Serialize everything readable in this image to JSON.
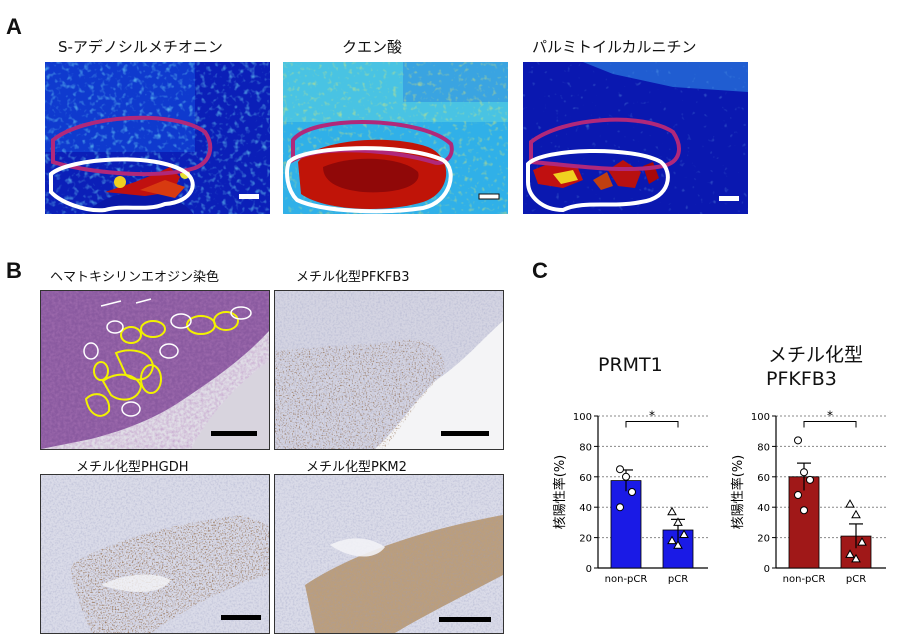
{
  "panels": {
    "a": {
      "letter": "A",
      "captions": [
        "S-アデノシルメチオニン",
        "クエン酸",
        "パルミトイルカルニチン"
      ]
    },
    "b": {
      "letter": "B",
      "captions": [
        "ヘマトキシリンエオジン染色",
        "メチル化型PFKFB3",
        "メチル化型PHGDH",
        "メチル化型PKM2"
      ]
    },
    "c": {
      "letter": "C",
      "titles": [
        [
          "PRMT1"
        ],
        [
          "メチル化型",
          "PFKFB3"
        ]
      ]
    }
  },
  "colors": {
    "prmt1_bar": "#1a1ae6",
    "pfkfb3_bar": "#a01818",
    "tumor_outline": "#ffffff",
    "stroma_outline": "#b0287a",
    "he_annotation": "#f2f200"
  },
  "chart_data": [
    {
      "type": "bar",
      "title": "PRMT1",
      "categories": [
        "non-pCR",
        "pCR"
      ],
      "values": [
        57.5,
        25
      ],
      "errors": [
        7,
        7
      ],
      "ylabel": "核陽性率(%)",
      "ylim": [
        0,
        100
      ],
      "yticks": [
        0,
        20,
        40,
        60,
        80,
        100
      ],
      "points": [
        [
          65,
          60,
          50,
          40
        ],
        [
          37,
          30,
          22,
          18,
          15
        ]
      ],
      "markers": [
        "circle",
        "triangle"
      ],
      "significance": "*",
      "grid": true
    },
    {
      "type": "bar",
      "title": "メチル化型 PFKFB3",
      "categories": [
        "non-pCR",
        "pCR"
      ],
      "values": [
        60,
        21
      ],
      "errors": [
        9,
        8
      ],
      "ylabel": "核陽性率(%)",
      "ylim": [
        0,
        100
      ],
      "yticks": [
        0,
        20,
        40,
        60,
        80,
        100
      ],
      "points": [
        [
          84,
          63,
          58,
          48,
          38
        ],
        [
          42,
          35,
          17,
          9,
          6
        ]
      ],
      "markers": [
        "circle",
        "triangle"
      ],
      "significance": "*",
      "grid": true
    }
  ]
}
